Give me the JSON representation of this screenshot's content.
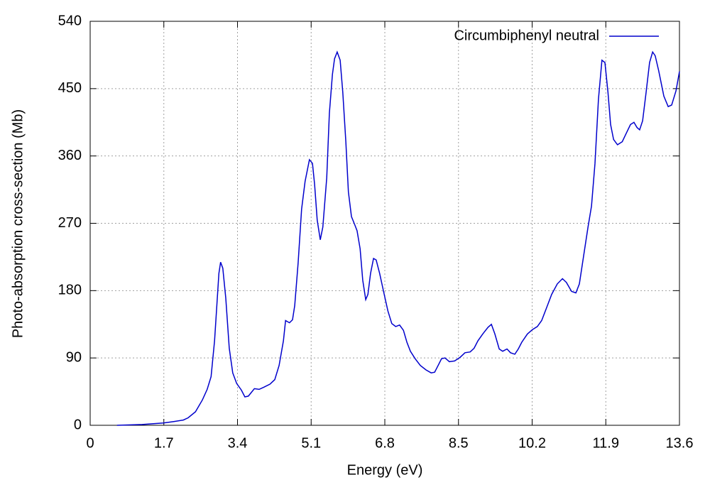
{
  "chart_data": {
    "type": "line",
    "xlabel": "Energy (eV)",
    "ylabel": "Photo-absorption cross-section (Mb)",
    "xlim": [
      0,
      13.6
    ],
    "ylim": [
      0,
      540
    ],
    "xticks": [
      0,
      1.7,
      3.4,
      5.1,
      6.8,
      8.5,
      10.2,
      11.9,
      13.6
    ],
    "yticks": [
      0,
      90,
      180,
      270,
      360,
      450,
      540
    ],
    "grid": true,
    "legend": "top right",
    "x": [
      0.62,
      1.2,
      1.69,
      1.93,
      2.15,
      2.26,
      2.43,
      2.59,
      2.7,
      2.79,
      2.87,
      2.97,
      3.01,
      3.06,
      3.13,
      3.21,
      3.29,
      3.38,
      3.49,
      3.57,
      3.65,
      3.79,
      3.9,
      4.01,
      4.15,
      4.26,
      4.36,
      4.46,
      4.51,
      4.6,
      4.67,
      4.72,
      4.8,
      4.88,
      4.96,
      5.06,
      5.13,
      5.18,
      5.24,
      5.31,
      5.37,
      5.46,
      5.52,
      5.59,
      5.64,
      5.7,
      5.77,
      5.83,
      5.9,
      5.96,
      6.03,
      6.1,
      6.16,
      6.23,
      6.29,
      6.36,
      6.41,
      6.47,
      6.54,
      6.6,
      6.68,
      6.77,
      6.87,
      6.96,
      7.05,
      7.14,
      7.23,
      7.31,
      7.39,
      7.5,
      7.62,
      7.75,
      7.87,
      7.95,
      8.03,
      8.11,
      8.19,
      8.29,
      8.41,
      8.54,
      8.65,
      8.77,
      8.86,
      8.95,
      9.06,
      9.18,
      9.26,
      9.34,
      9.44,
      9.52,
      9.62,
      9.7,
      9.8,
      9.88,
      9.96,
      10.09,
      10.21,
      10.32,
      10.42,
      10.54,
      10.65,
      10.78,
      10.9,
      10.99,
      11.11,
      11.21,
      11.29,
      11.39,
      11.49,
      11.57,
      11.65,
      11.73,
      11.81,
      11.88,
      11.95,
      12.01,
      12.08,
      12.17,
      12.28,
      12.37,
      12.47,
      12.55,
      12.62,
      12.68,
      12.75,
      12.83,
      12.91,
      12.98,
      13.04,
      13.12,
      13.24,
      13.34,
      13.42,
      13.52,
      13.6
    ],
    "series": [
      {
        "name": "Circumbiphenyl neutral",
        "color": "#0000cc",
        "values": [
          0,
          1,
          3,
          5,
          7,
          10,
          18,
          34,
          48,
          65,
          113,
          203,
          218,
          210,
          170,
          103,
          70,
          56,
          47,
          38,
          39,
          49,
          48,
          51,
          55,
          61,
          80,
          113,
          140,
          137,
          141,
          160,
          217,
          289,
          326,
          355,
          350,
          322,
          274,
          248,
          265,
          331,
          417,
          469,
          490,
          499,
          488,
          445,
          379,
          312,
          279,
          269,
          260,
          236,
          194,
          168,
          175,
          203,
          223,
          221,
          203,
          179,
          153,
          136,
          132,
          134,
          127,
          111,
          99,
          89,
          80,
          74,
          70,
          71,
          80,
          89,
          90,
          85,
          86,
          91,
          97,
          98,
          103,
          113,
          122,
          131,
          135,
          122,
          102,
          99,
          102,
          97,
          95,
          102,
          111,
          122,
          128,
          132,
          140,
          158,
          175,
          189,
          196,
          191,
          179,
          177,
          189,
          227,
          265,
          293,
          350,
          436,
          488,
          485,
          445,
          402,
          382,
          375,
          379,
          390,
          402,
          405,
          398,
          395,
          407,
          445,
          485,
          499,
          494,
          474,
          440,
          426,
          428,
          447,
          473
        ]
      }
    ]
  }
}
